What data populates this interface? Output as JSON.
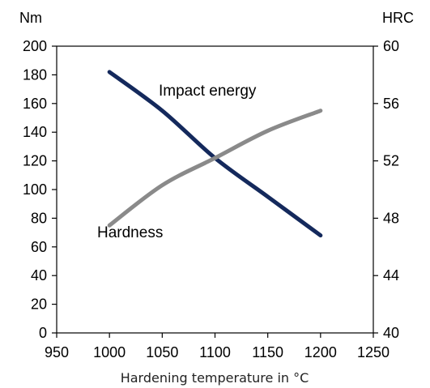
{
  "chart_data": {
    "type": "line",
    "title": "",
    "xlabel": "Hardening temperature in °C",
    "ylabel_left": "Nm",
    "ylabel_right": "HRC",
    "xlim": [
      950,
      1250
    ],
    "ylim_left": [
      0,
      200
    ],
    "ylim_right": [
      40,
      60
    ],
    "grid": false,
    "legend": "none",
    "x_ticks": [
      "950",
      "1000",
      "1050",
      "1100",
      "1150",
      "1200",
      "1250"
    ],
    "y_left_ticks": [
      "0",
      "20",
      "40",
      "60",
      "80",
      "100",
      "120",
      "140",
      "160",
      "180",
      "200"
    ],
    "y_right_ticks": [
      "40",
      "44",
      "48",
      "52",
      "56",
      "60"
    ],
    "series": [
      {
        "name": "Impact energy",
        "axis": "left",
        "color": "#14295c",
        "x": [
          1000,
          1050,
          1100,
          1150,
          1200
        ],
        "y": [
          182,
          155,
          122,
          95,
          68
        ]
      },
      {
        "name": "Hardness",
        "axis": "right",
        "color": "#8a8a8a",
        "x": [
          1000,
          1050,
          1100,
          1150,
          1200
        ],
        "y": [
          47.5,
          50.3,
          52.2,
          54.1,
          55.5
        ]
      }
    ]
  }
}
